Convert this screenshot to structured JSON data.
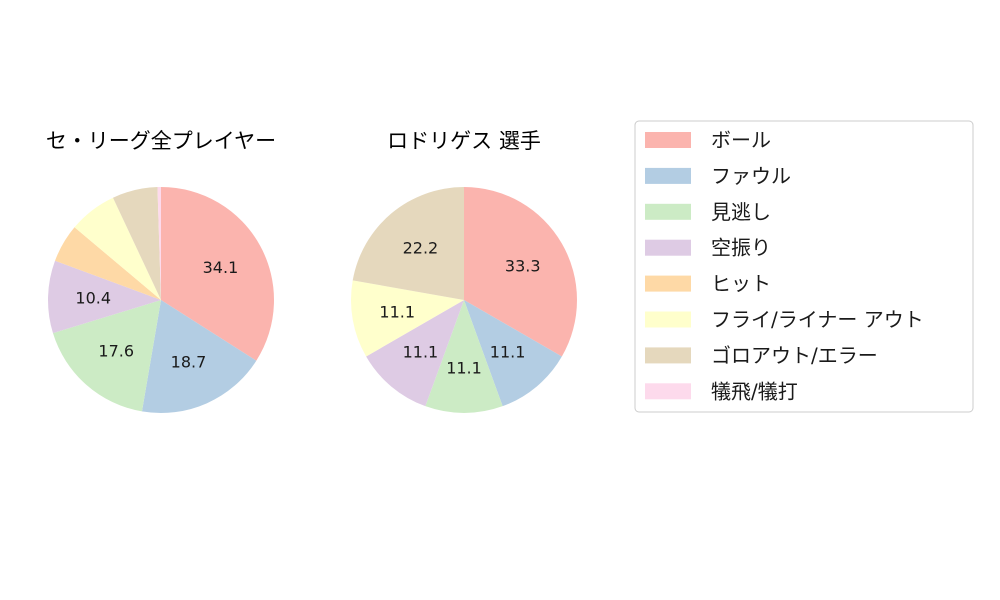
{
  "chart_data": [
    {
      "type": "pie",
      "title": "セ・リーグ全プレイヤー",
      "labels": [
        "ボール",
        "ファウル",
        "見逃し",
        "空振り",
        "ヒット",
        "フライ/ライナー アウト",
        "ゴロアウト/エラー",
        "犠飛/犠打"
      ],
      "values": [
        34.1,
        18.7,
        17.6,
        10.4,
        5.5,
        6.9,
        6.5,
        0.5
      ],
      "data_labels": [
        "34.1",
        "18.7",
        "17.6",
        "10.4",
        "",
        "",
        "",
        ""
      ],
      "colors": [
        "#fbb4ae",
        "#b3cde3",
        "#ccebc5",
        "#decbe4",
        "#fed9a6",
        "#ffffcc",
        "#e5d8bd",
        "#fddaec"
      ],
      "start_angle_deg": 90,
      "direction": "clockwise"
    },
    {
      "type": "pie",
      "title": "ロドリゲス  選手",
      "labels": [
        "ボール",
        "ファウル",
        "見逃し",
        "空振り",
        "フライ/ライナー アウト",
        "ゴロアウト/エラー"
      ],
      "values": [
        33.3,
        11.1,
        11.1,
        11.1,
        11.1,
        22.2
      ],
      "data_labels": [
        "33.3",
        "11.1",
        "11.1",
        "11.1",
        "11.1",
        "22.2"
      ],
      "colors": [
        "#fbb4ae",
        "#b3cde3",
        "#ccebc5",
        "#decbe4",
        "#ffffcc",
        "#e5d8bd"
      ],
      "start_angle_deg": 90,
      "direction": "clockwise"
    }
  ],
  "legend": {
    "placement": "right",
    "items": [
      {
        "label": "ボール",
        "color": "#fbb4ae"
      },
      {
        "label": "ファウル",
        "color": "#b3cde3"
      },
      {
        "label": "見逃し",
        "color": "#ccebc5"
      },
      {
        "label": "空振り",
        "color": "#decbe4"
      },
      {
        "label": "ヒット",
        "color": "#fed9a6"
      },
      {
        "label": "フライ/ライナー アウト",
        "color": "#ffffcc"
      },
      {
        "label": "ゴロアウト/エラー",
        "color": "#e5d8bd"
      },
      {
        "label": "犠飛/犠打",
        "color": "#fddaec"
      }
    ]
  }
}
